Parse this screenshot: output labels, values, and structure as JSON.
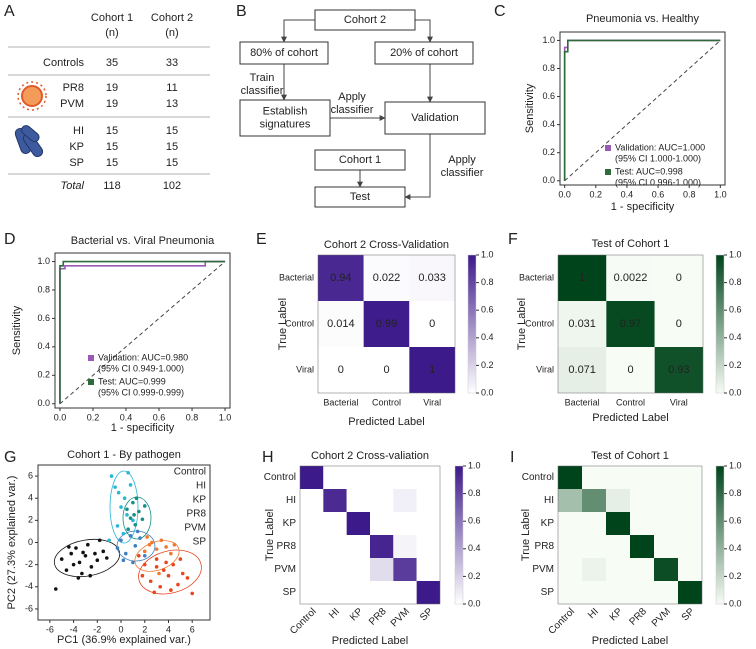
{
  "panel_labels": [
    "A",
    "B",
    "C",
    "D",
    "E",
    "F",
    "G",
    "H",
    "I"
  ],
  "table": {
    "columns": [
      {
        "name": "Cohort 1",
        "unit": "(n)"
      },
      {
        "name": "Cohort 2",
        "unit": "(n)"
      }
    ],
    "rows": [
      {
        "label": "Controls",
        "values": [
          35,
          33
        ]
      },
      {
        "label": "PR8",
        "values": [
          19,
          11
        ]
      },
      {
        "label": "PVM",
        "values": [
          19,
          13
        ]
      },
      {
        "label": "HI",
        "values": [
          15,
          15
        ]
      },
      {
        "label": "KP",
        "values": [
          15,
          15
        ]
      },
      {
        "label": "SP",
        "values": [
          15,
          15
        ]
      },
      {
        "label": "Total",
        "values": [
          118,
          102
        ]
      }
    ]
  },
  "diagram": {
    "nodes": [
      {
        "label": [
          "Cohort 2"
        ]
      },
      {
        "label": [
          "80% of cohort"
        ]
      },
      {
        "label": [
          "20% of cohort"
        ]
      },
      {
        "label": [
          "Establish",
          "signatures"
        ]
      },
      {
        "label": [
          "Validation"
        ],
        "color": "#8e44ad"
      },
      {
        "label": [
          "Cohort 1"
        ]
      },
      {
        "label": [
          "Test"
        ],
        "color": "#1e7a2e"
      }
    ],
    "edge_labels": [
      [
        "Train",
        "classifier"
      ],
      [
        "Apply",
        "classifier"
      ],
      [
        "Apply",
        "classifier"
      ]
    ]
  },
  "chart_data": [
    {
      "type": "line",
      "title": "Pneumonia vs. Healthy",
      "x_label": "1 - specificity",
      "y_label": "Sensitivity",
      "xlim": [
        -0.03,
        1.03
      ],
      "ylim": [
        -0.03,
        1.06
      ],
      "xticks": [
        {
          "value": 0,
          "label": "0.0"
        },
        0.2,
        0.4,
        0.6,
        0.8,
        {
          "value": 1,
          "label": "1.0"
        }
      ],
      "yticks": [
        {
          "value": 0,
          "label": "0.0"
        },
        0.2,
        0.4,
        0.6,
        0.8,
        {
          "value": 1,
          "label": "1.0"
        }
      ],
      "series": [
        {
          "name": "Validation: AUC=1.000",
          "ci": "(95% CI 1.000-1.000)",
          "color": "#9b59b6",
          "x": [
            0,
            0,
            0.02,
            0.02,
            1
          ],
          "y": [
            0,
            0.95,
            0.95,
            1,
            1
          ]
        },
        {
          "name": "Test: AUC=0.998",
          "ci": "(95% CI 0.996-1.000)",
          "color": "#2e6b3a",
          "x": [
            0,
            0,
            0.02,
            0.02,
            1
          ],
          "y": [
            0,
            0.92,
            0.92,
            1,
            1
          ]
        }
      ]
    },
    {
      "type": "line",
      "title": "Bacterial vs. Viral Pneumonia",
      "x_label": "1 - specificity",
      "y_label": "Sensitivity",
      "xlim": [
        -0.03,
        1.03
      ],
      "ylim": [
        -0.03,
        1.06
      ],
      "xticks": [
        {
          "value": 0,
          "label": "0.0"
        },
        0.2,
        0.4,
        0.6,
        0.8,
        {
          "value": 1,
          "label": "1.0"
        }
      ],
      "yticks": [
        {
          "value": 0,
          "label": "0.0"
        },
        0.2,
        0.4,
        0.6,
        0.8,
        {
          "value": 1,
          "label": "1.0"
        }
      ],
      "series": [
        {
          "name": "Validation: AUC=0.980",
          "ci": "(95% CI 0.949-1.000)",
          "color": "#9b59b6",
          "x": [
            0,
            0,
            0.03,
            0.03,
            0.88,
            0.88,
            1
          ],
          "y": [
            0,
            0.95,
            0.95,
            0.97,
            0.97,
            1,
            1
          ]
        },
        {
          "name": "Test: AUC=0.999",
          "ci": "(95% CI 0.999-0.999)",
          "color": "#2e6b3a",
          "x": [
            0,
            0,
            0.02,
            0.02,
            1
          ],
          "y": [
            0,
            0.97,
            0.97,
            1,
            1
          ]
        }
      ]
    },
    {
      "type": "heatmap",
      "title": "Cohort 2 Cross-Validation",
      "x_label": "Predicted Label",
      "y_label": "True Label",
      "x_categories": [
        "Bacterial",
        "Control",
        "Viral"
      ],
      "y_categories": [
        "Bacterial",
        "Control",
        "Viral"
      ],
      "values": [
        [
          0.94,
          0.022,
          0.033
        ],
        [
          0.014,
          0.99,
          0
        ],
        [
          0,
          0,
          1
        ]
      ],
      "show_values": true,
      "rotate_xticks": false,
      "cmap": [
        "#ffffff",
        "#3d1a8a"
      ],
      "clim": [
        0,
        1
      ],
      "cticks": [
        {
          "value": 0,
          "label": "0.0"
        },
        0.2,
        0.4,
        0.6,
        0.8,
        {
          "value": 1,
          "label": "1.0"
        }
      ]
    },
    {
      "type": "heatmap",
      "title": "Test of Cohort 1",
      "x_label": "Predicted Label",
      "y_label": "True Label",
      "x_categories": [
        "Bacterial",
        "Control",
        "Viral"
      ],
      "y_categories": [
        "Bacterial",
        "Control",
        "Viral"
      ],
      "values": [
        [
          1,
          0.0022,
          0
        ],
        [
          0.031,
          0.97,
          0
        ],
        [
          0.071,
          0,
          0.93
        ]
      ],
      "show_values": true,
      "rotate_xticks": false,
      "cmap": [
        "#f7fcf5",
        "#00441b"
      ],
      "clim": [
        0,
        1
      ],
      "cticks": [
        {
          "value": 0,
          "label": "0.0"
        },
        0.2,
        0.4,
        0.6,
        0.8,
        {
          "value": 1,
          "label": "1.0"
        }
      ]
    },
    {
      "type": "scatter",
      "title": "Cohort 1 - By pathogen",
      "x_label": "PC1 (36.9% explained var.)",
      "y_label": "PC2 (27.3% explained var.)",
      "xlim": [
        -7,
        7.5
      ],
      "ylim": [
        -7,
        7
      ],
      "xticks": [
        -6,
        -4,
        -2,
        0,
        2,
        4,
        6
      ],
      "yticks": [
        -6,
        -4,
        -2,
        0,
        2,
        4,
        6
      ],
      "series": [
        {
          "name": "Control",
          "color": "#111111",
          "x": [
            -5,
            -4.6,
            -4.2,
            -4,
            -3.8,
            -3.5,
            -3.3,
            -3,
            -2.8,
            -2.5,
            -2.2,
            -2,
            -1.8,
            -1.5,
            -4.4,
            -3.6,
            -2.6,
            -3.2,
            -1.2,
            -5.5
          ],
          "y": [
            -1.5,
            -2.5,
            -1,
            -2,
            -0.5,
            -1.8,
            -2.8,
            -1.2,
            -0.2,
            -2.2,
            -1,
            -1.6,
            0.2,
            -0.8,
            -0.4,
            -3.2,
            -3,
            -0.9,
            -1.4,
            -4.2
          ]
        },
        {
          "name": "HI",
          "color": "#29b6d6",
          "x": [
            -0.8,
            -0.5,
            -0.2,
            0,
            0.3,
            0.5,
            0.8,
            -0.3,
            0.2,
            1,
            -1,
            0.6
          ],
          "y": [
            6,
            5,
            4.5,
            3.2,
            4,
            2.5,
            5.2,
            1.5,
            0.8,
            2,
            0.2,
            6.3
          ]
        },
        {
          "name": "KP",
          "color": "#138f88",
          "x": [
            0.5,
            0.8,
            1,
            1.2,
            1.5,
            1.8,
            0.6,
            1.3,
            2,
            1.1
          ],
          "y": [
            3,
            2.2,
            3.6,
            1.6,
            2.8,
            2.1,
            1.2,
            4,
            3.3,
            2.5
          ]
        },
        {
          "name": "PR8",
          "color": "#e8451e",
          "x": [
            1.5,
            2,
            2.5,
            3,
            3.3,
            3.6,
            4,
            4.4,
            4.8,
            5.2,
            5.6,
            2.8,
            3.8,
            4.2,
            1.8,
            5,
            3,
            6
          ],
          "y": [
            -1.2,
            -2,
            -3.5,
            -1.5,
            -4,
            -2.5,
            -3,
            -2,
            -3.8,
            -2.8,
            -3.2,
            -4.5,
            -1.8,
            -4.3,
            -3,
            -1.5,
            -2.2,
            -4.6
          ]
        },
        {
          "name": "PVM",
          "color": "#f07a2c",
          "x": [
            2.2,
            2.6,
            3,
            3.4,
            3.8,
            4.2,
            2.4,
            3.2,
            4.5,
            2
          ],
          "y": [
            0.5,
            0,
            -0.6,
            0.2,
            -0.4,
            -1,
            -0.2,
            -2.8,
            -0.2,
            -0.8
          ]
        },
        {
          "name": "SP",
          "color": "#3f7fc0",
          "x": [
            -0.3,
            0,
            0.4,
            0.8,
            1.2,
            1.6,
            2,
            0.2,
            1,
            1.4
          ],
          "y": [
            -0.5,
            0.2,
            -1,
            0.6,
            -0.3,
            0.4,
            -1.2,
            -1.6,
            -1.8,
            1
          ]
        }
      ]
    },
    {
      "type": "heatmap",
      "title": "Cohort 2 Cross-valiation",
      "x_label": "Predicted Label",
      "y_label": "True Label",
      "x_categories": [
        "Control",
        "HI",
        "KP",
        "PR8",
        "PVM",
        "SP"
      ],
      "y_categories": [
        "Control",
        "HI",
        "KP",
        "PR8",
        "PVM",
        "SP"
      ],
      "values": [
        [
          1,
          0,
          0,
          0,
          0,
          0
        ],
        [
          0,
          0.93,
          0,
          0,
          0.07,
          0
        ],
        [
          0,
          0,
          1,
          0,
          0,
          0
        ],
        [
          0,
          0,
          0,
          0.95,
          0.05,
          0
        ],
        [
          0,
          0,
          0,
          0.15,
          0.85,
          0
        ],
        [
          0,
          0,
          0,
          0,
          0,
          1
        ]
      ],
      "show_values": false,
      "rotate_xticks": true,
      "cmap": [
        "#ffffff",
        "#3d1a8a"
      ],
      "clim": [
        0,
        1
      ],
      "cticks": [
        {
          "value": 0,
          "label": "0.0"
        },
        0.2,
        0.4,
        0.6,
        0.8,
        {
          "value": 1,
          "label": "1.0"
        }
      ]
    },
    {
      "type": "heatmap",
      "title": "Test of Cohort 1",
      "x_label": "Predicted Label",
      "y_label": "True Label",
      "x_categories": [
        "Control",
        "HI",
        "KP",
        "PR8",
        "PVM",
        "SP"
      ],
      "y_categories": [
        "Control",
        "HI",
        "KP",
        "PR8",
        "PVM",
        "SP"
      ],
      "values": [
        [
          1,
          0,
          0,
          0,
          0,
          0
        ],
        [
          0.33,
          0.6,
          0.07,
          0,
          0,
          0
        ],
        [
          0,
          0,
          1,
          0,
          0,
          0
        ],
        [
          0,
          0,
          0,
          1,
          0,
          0
        ],
        [
          0,
          0.05,
          0,
          0,
          0.95,
          0
        ],
        [
          0,
          0,
          0,
          0,
          0,
          1
        ]
      ],
      "show_values": false,
      "rotate_xticks": true,
      "cmap": [
        "#f7fcf5",
        "#00441b"
      ],
      "clim": [
        0,
        1
      ],
      "cticks": [
        {
          "value": 0,
          "label": "0.0"
        },
        0.2,
        0.4,
        0.6,
        0.8,
        {
          "value": 1,
          "label": "1.0"
        }
      ]
    }
  ]
}
